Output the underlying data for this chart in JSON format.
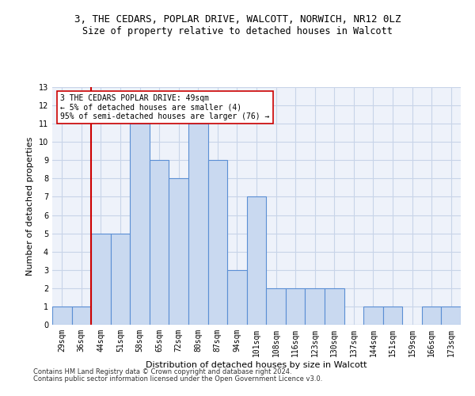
{
  "title": "3, THE CEDARS, POPLAR DRIVE, WALCOTT, NORWICH, NR12 0LZ",
  "subtitle": "Size of property relative to detached houses in Walcott",
  "xlabel": "Distribution of detached houses by size in Walcott",
  "ylabel": "Number of detached properties",
  "categories": [
    "29sqm",
    "36sqm",
    "44sqm",
    "51sqm",
    "58sqm",
    "65sqm",
    "72sqm",
    "80sqm",
    "87sqm",
    "94sqm",
    "101sqm",
    "108sqm",
    "116sqm",
    "123sqm",
    "130sqm",
    "137sqm",
    "144sqm",
    "151sqm",
    "159sqm",
    "166sqm",
    "173sqm"
  ],
  "values": [
    1,
    1,
    5,
    5,
    11,
    9,
    8,
    11,
    9,
    3,
    7,
    2,
    2,
    2,
    2,
    0,
    1,
    1,
    0,
    1,
    1
  ],
  "bar_color": "#c9d9f0",
  "bar_edge_color": "#5b8fd4",
  "vline_index": 2,
  "vline_color": "#cc0000",
  "annotation_line1": "3 THE CEDARS POPLAR DRIVE: 49sqm",
  "annotation_line2": "← 5% of detached houses are smaller (4)",
  "annotation_line3": "95% of semi-detached houses are larger (76) →",
  "annotation_box_color": "#ffffff",
  "annotation_box_edge_color": "#cc0000",
  "ylim": [
    0,
    13
  ],
  "yticks": [
    0,
    1,
    2,
    3,
    4,
    5,
    6,
    7,
    8,
    9,
    10,
    11,
    12,
    13
  ],
  "grid_color": "#c8d4e8",
  "bg_color": "#eef2fa",
  "title_fontsize": 9,
  "subtitle_fontsize": 8.5,
  "ylabel_fontsize": 8,
  "xlabel_fontsize": 8,
  "tick_fontsize": 7,
  "annotation_fontsize": 7,
  "footer1": "Contains HM Land Registry data © Crown copyright and database right 2024.",
  "footer2": "Contains public sector information licensed under the Open Government Licence v3.0.",
  "footer_fontsize": 6
}
